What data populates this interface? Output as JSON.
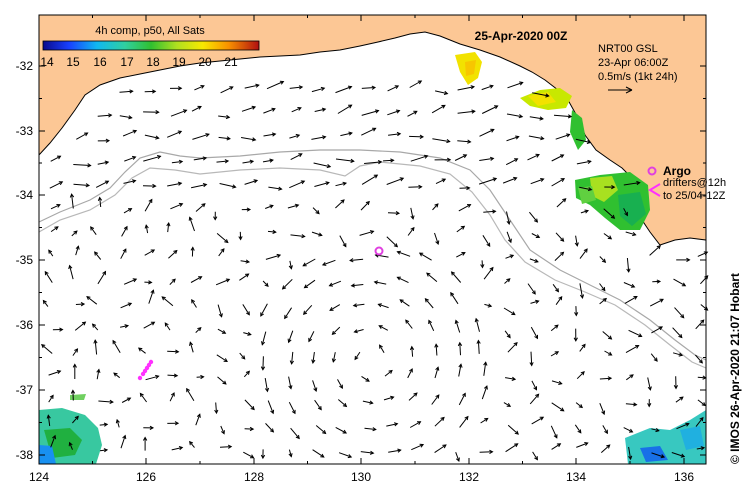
{
  "title": {
    "date": "25-Apr-2020 00Z"
  },
  "colorbar": {
    "label": "4h comp, p50, All Sats",
    "ticks": [
      "14",
      "15",
      "16",
      "17",
      "18",
      "19",
      "20",
      "21"
    ]
  },
  "info": {
    "product": "NRT00 GSL",
    "time": "23-Apr 06:00Z",
    "scale": "0.5m/s (1kt 24h)"
  },
  "legend": {
    "argo": "Argo",
    "drifters_line1": "drifters@12h",
    "drifters_line2": "to 25/04-12Z"
  },
  "credit": "© IMOS 26-Apr-2020 21:07 Hobart",
  "axes": {
    "x_ticks": [
      "124",
      "126",
      "128",
      "130",
      "132",
      "134",
      "136"
    ],
    "y_ticks": [
      "-32",
      "-33",
      "-34",
      "-35",
      "-36",
      "-37",
      "-38"
    ]
  },
  "colors": {
    "land": "#fcc795",
    "ocean": "#ffffff",
    "arrow": "#000000",
    "isobath": "#a8a8a8",
    "argo": "#e040e0",
    "drifter": "#ff30ff"
  }
}
